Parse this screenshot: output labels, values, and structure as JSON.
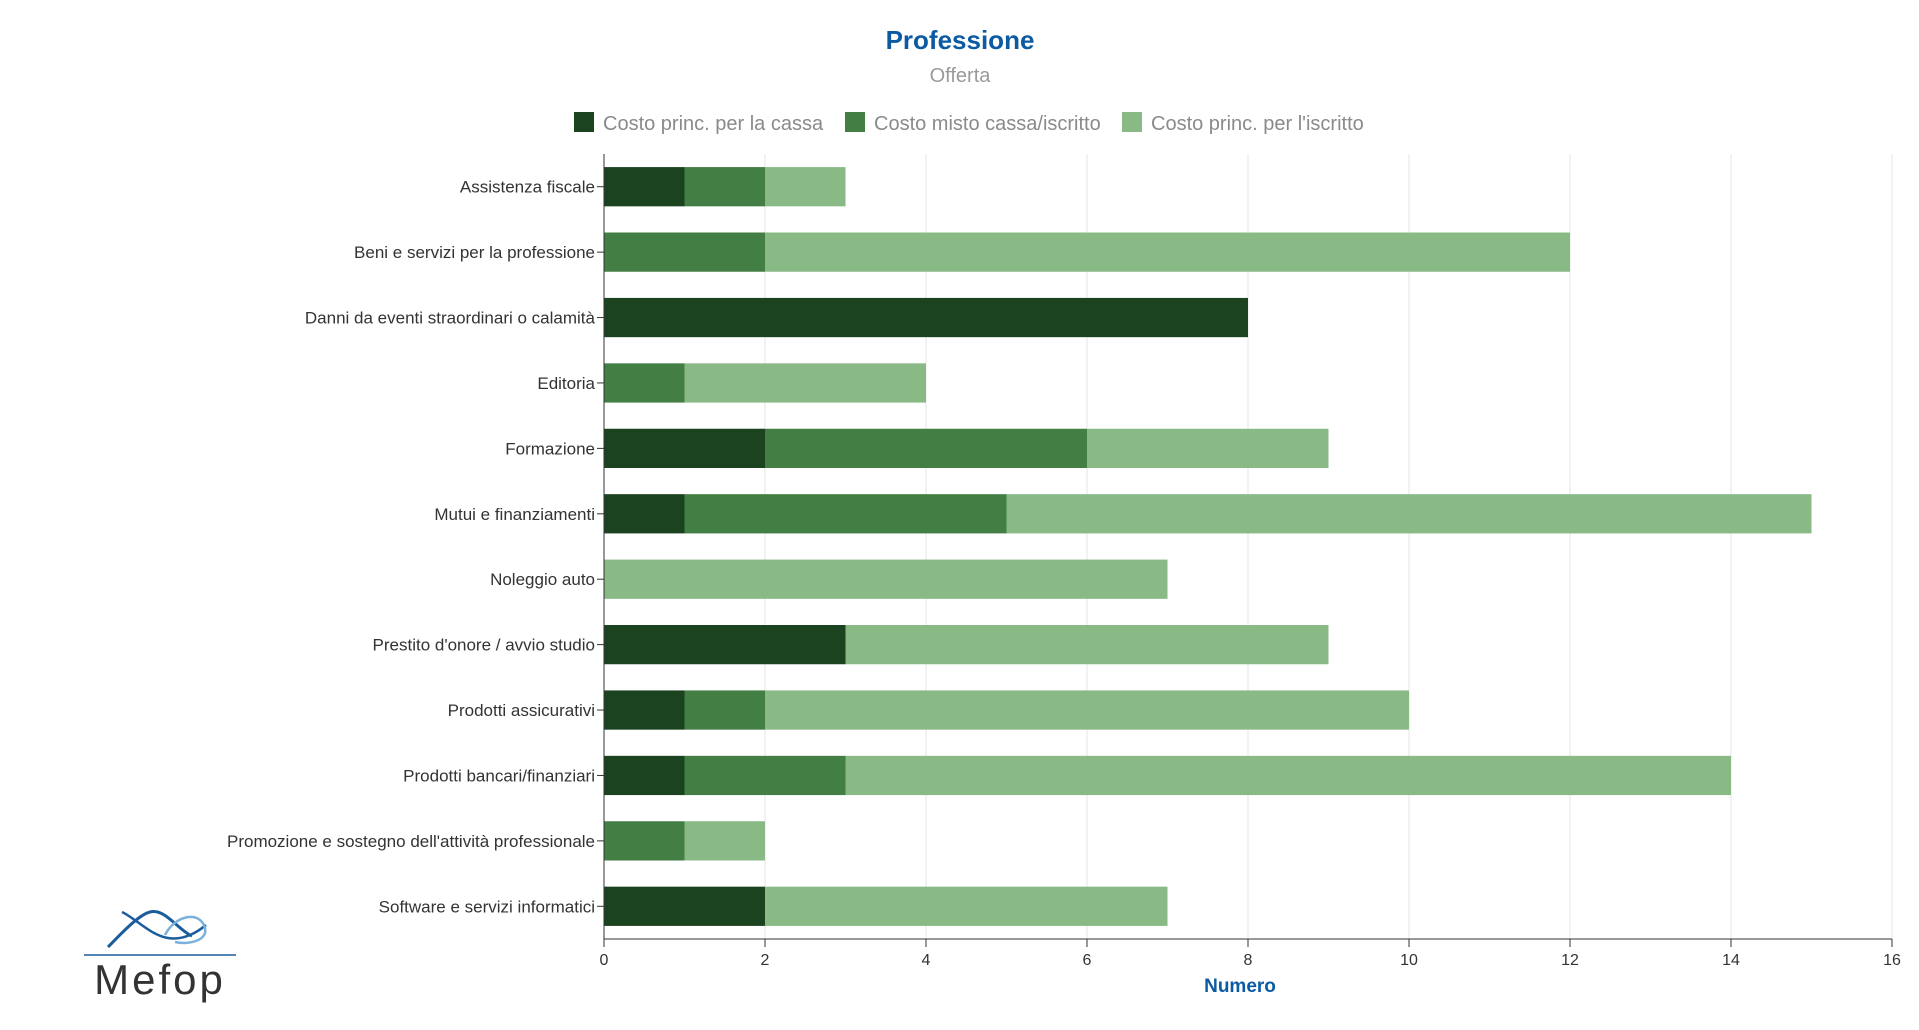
{
  "colors": {
    "title": "#0b5aa2",
    "series": [
      "#1b4320",
      "#437e44",
      "#89ba86"
    ]
  },
  "logo": {
    "text": "Mefop",
    "icon": "mefop-wave-logo"
  },
  "chart_data": {
    "type": "bar",
    "orientation": "horizontal",
    "stacked": true,
    "title": "Professione",
    "subtitle": "Offerta",
    "xlabel": "Numero",
    "ylabel": "",
    "xlim": [
      0,
      16
    ],
    "x_ticks": [
      "0",
      "2",
      "4",
      "6",
      "8",
      "10",
      "12",
      "14",
      "16"
    ],
    "grid": true,
    "legend_position": "top",
    "categories": [
      "Assistenza fiscale",
      "Beni e servizi per la professione",
      "Danni da eventi straordinari o calamità",
      "Editoria",
      "Formazione",
      "Mutui e finanziamenti",
      "Noleggio auto",
      "Prestito d'onore / avvio studio",
      "Prodotti assicurativi",
      "Prodotti bancari/finanziari",
      "Promozione e sostegno dell'attività professionale",
      "Software e servizi informatici"
    ],
    "series": [
      {
        "name": "Costo princ. per la cassa",
        "values": [
          1,
          0,
          8,
          0,
          2,
          1,
          0,
          3,
          1,
          1,
          0,
          2
        ]
      },
      {
        "name": "Costo misto cassa/iscritto",
        "values": [
          1,
          2,
          0,
          1,
          4,
          4,
          0,
          0,
          1,
          2,
          1,
          0
        ]
      },
      {
        "name": "Costo princ. per l'iscritto",
        "values": [
          1,
          10,
          0,
          3,
          3,
          10,
          7,
          6,
          8,
          11,
          1,
          5
        ]
      }
    ]
  }
}
